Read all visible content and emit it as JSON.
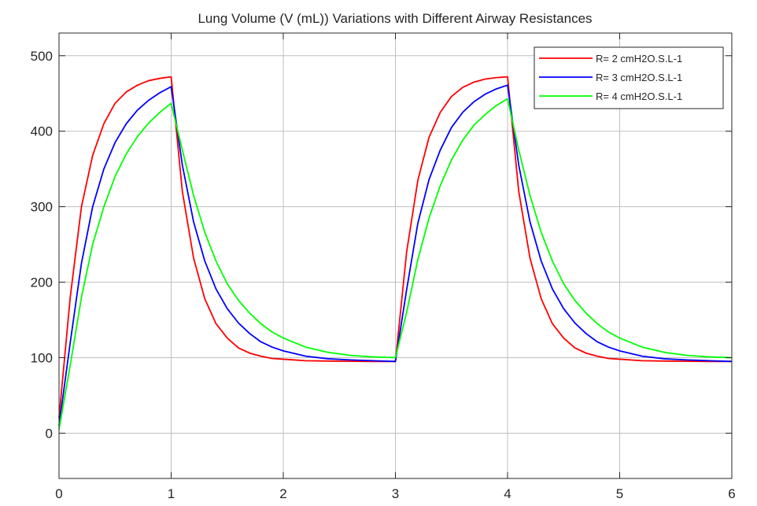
{
  "chart_data": {
    "type": "line",
    "title": "Lung Volume (V (mL)) Variations with Different Airway Resistances",
    "xlabel": "",
    "ylabel": "",
    "xlim": [
      0,
      6
    ],
    "ylim": [
      -60,
      530
    ],
    "x_ticks": [
      "0",
      "1",
      "2",
      "3",
      "4",
      "5",
      "6"
    ],
    "y_ticks": [
      "0",
      "100",
      "200",
      "300",
      "400",
      "500"
    ],
    "grid": true,
    "legend_position": "top-right",
    "x": [
      0,
      0.1,
      0.2,
      0.3,
      0.4,
      0.5,
      0.6,
      0.7,
      0.8,
      0.9,
      1.0,
      1.1,
      1.2,
      1.3,
      1.4,
      1.5,
      1.6,
      1.7,
      1.8,
      1.9,
      2.0,
      2.2,
      2.4,
      2.6,
      2.8,
      3.0,
      3.1,
      3.2,
      3.3,
      3.4,
      3.5,
      3.6,
      3.7,
      3.8,
      3.9,
      4.0,
      4.1,
      4.2,
      4.3,
      4.4,
      4.5,
      4.6,
      4.7,
      4.8,
      4.9,
      5.0,
      5.2,
      5.4,
      5.6,
      5.8,
      6.0
    ],
    "series": [
      {
        "name": "R= 2 cmH2O.S.L-1",
        "color": "#ff0000",
        "values": [
          20,
          180,
          300,
          368,
          410,
          437,
          452,
          461,
          467,
          470,
          472,
          320,
          232,
          178,
          145,
          126,
          113,
          106,
          102,
          99,
          98,
          96,
          95.5,
          95.2,
          95,
          95,
          240,
          335,
          392,
          425,
          446,
          458,
          465,
          469,
          471,
          472,
          320,
          232,
          178,
          145,
          126,
          113,
          106,
          102,
          99,
          98,
          96,
          95.5,
          95.2,
          95,
          95
        ]
      },
      {
        "name": "R= 3 cmH2O.S.L-1",
        "color": "#0000ff",
        "values": [
          10,
          120,
          225,
          300,
          350,
          385,
          410,
          428,
          441,
          451,
          459,
          355,
          280,
          228,
          191,
          165,
          146,
          132,
          121,
          114,
          109,
          102,
          98.5,
          97,
          96,
          95,
          190,
          278,
          336,
          375,
          405,
          425,
          439,
          449,
          456,
          461,
          355,
          280,
          228,
          191,
          165,
          146,
          132,
          121,
          114,
          109,
          102,
          98.5,
          97,
          96,
          95
        ]
      },
      {
        "name": "R= 4 cmH2O.S.L-1",
        "color": "#00ff00",
        "values": [
          5,
          90,
          180,
          250,
          300,
          340,
          370,
          393,
          411,
          425,
          437,
          375,
          315,
          266,
          228,
          198,
          176,
          159,
          145,
          134,
          126,
          114,
          107,
          103,
          101,
          100,
          160,
          230,
          285,
          328,
          362,
          388,
          408,
          422,
          434,
          443,
          375,
          315,
          266,
          228,
          198,
          176,
          159,
          145,
          134,
          126,
          114,
          107,
          103,
          101,
          100
        ]
      }
    ]
  }
}
